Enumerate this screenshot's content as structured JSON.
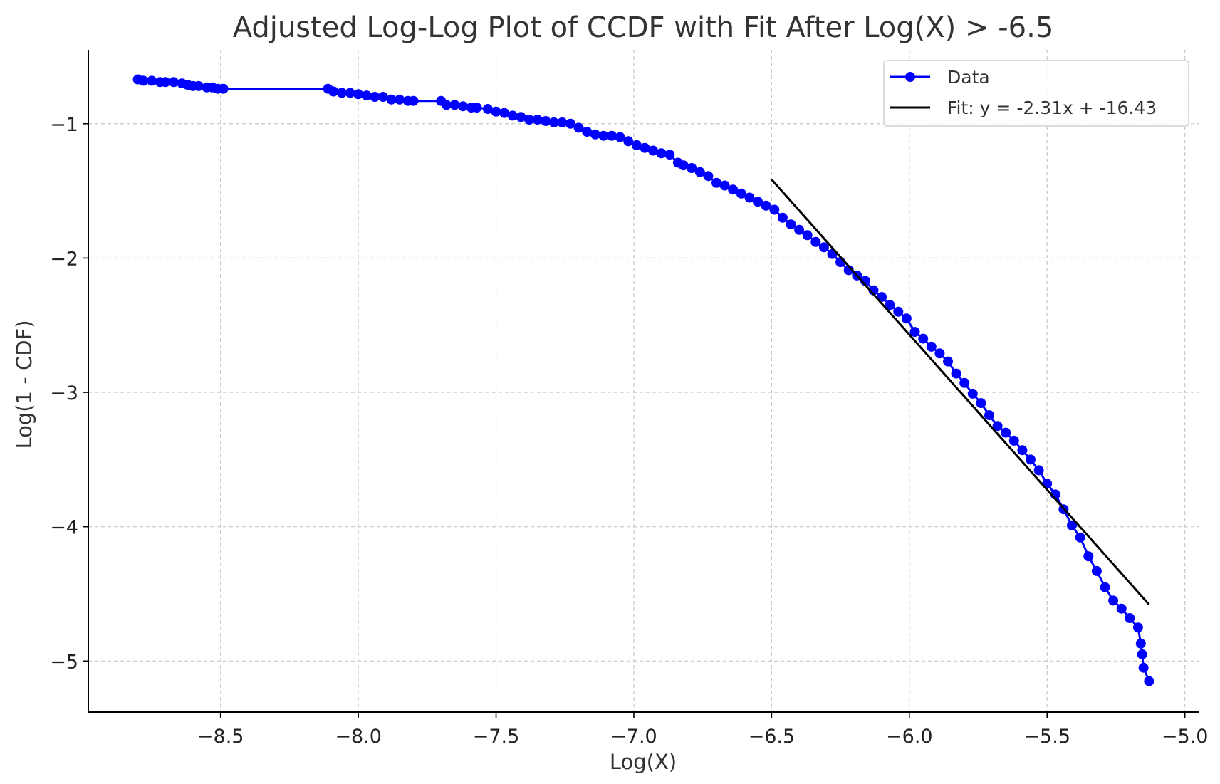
{
  "chart_data": {
    "type": "scatter",
    "title": "Adjusted Log-Log Plot of CCDF with Fit After Log(X) > -6.5",
    "xlabel": "Log(X)",
    "ylabel": "Log(1 - CDF)",
    "xlim": [
      -8.98,
      -4.95
    ],
    "ylim": [
      -5.38,
      -0.45
    ],
    "xticks": [
      -8.5,
      -8.0,
      -7.5,
      -7.0,
      -6.5,
      -6.0,
      -5.5,
      -5.0
    ],
    "xtick_labels": [
      "−8.5",
      "−8.0",
      "−7.5",
      "−7.0",
      "−6.5",
      "−6.0",
      "−5.5",
      "−5.0"
    ],
    "yticks": [
      -1,
      -2,
      -3,
      -4,
      -5
    ],
    "ytick_labels": [
      "−1",
      "−2",
      "−3",
      "−4",
      "−5"
    ],
    "grid": true,
    "legend_position": "top-right",
    "series": [
      {
        "name": "Data",
        "kind": "line-marker",
        "color": "#0000ff",
        "x": [
          -8.8,
          -8.78,
          -8.75,
          -8.72,
          -8.7,
          -8.67,
          -8.64,
          -8.62,
          -8.6,
          -8.58,
          -8.55,
          -8.53,
          -8.51,
          -8.49,
          -8.11,
          -8.09,
          -8.06,
          -8.03,
          -8.0,
          -7.97,
          -7.94,
          -7.91,
          -7.88,
          -7.85,
          -7.82,
          -7.8,
          -7.7,
          -7.68,
          -7.65,
          -7.62,
          -7.59,
          -7.57,
          -7.53,
          -7.5,
          -7.47,
          -7.44,
          -7.41,
          -7.38,
          -7.35,
          -7.32,
          -7.29,
          -7.26,
          -7.23,
          -7.2,
          -7.17,
          -7.14,
          -7.11,
          -7.08,
          -7.05,
          -7.02,
          -6.99,
          -6.96,
          -6.93,
          -6.9,
          -6.87,
          -6.84,
          -6.82,
          -6.79,
          -6.76,
          -6.73,
          -6.7,
          -6.67,
          -6.64,
          -6.61,
          -6.58,
          -6.55,
          -6.52,
          -6.49,
          -6.46,
          -6.43,
          -6.4,
          -6.37,
          -6.34,
          -6.31,
          -6.28,
          -6.25,
          -6.22,
          -6.19,
          -6.16,
          -6.13,
          -6.1,
          -6.07,
          -6.04,
          -6.01,
          -5.98,
          -5.95,
          -5.92,
          -5.89,
          -5.86,
          -5.83,
          -5.8,
          -5.77,
          -5.74,
          -5.71,
          -5.68,
          -5.65,
          -5.62,
          -5.59,
          -5.56,
          -5.53,
          -5.5,
          -5.47,
          -5.44,
          -5.41,
          -5.38,
          -5.35,
          -5.32,
          -5.29,
          -5.26,
          -5.23,
          -5.2,
          -5.17,
          -5.16,
          -5.155,
          -5.15,
          -5.13
        ],
        "y": [
          -0.67,
          -0.68,
          -0.68,
          -0.69,
          -0.69,
          -0.69,
          -0.7,
          -0.71,
          -0.72,
          -0.72,
          -0.73,
          -0.73,
          -0.74,
          -0.74,
          -0.74,
          -0.76,
          -0.77,
          -0.77,
          -0.78,
          -0.79,
          -0.8,
          -0.8,
          -0.82,
          -0.82,
          -0.83,
          -0.83,
          -0.83,
          -0.86,
          -0.86,
          -0.87,
          -0.88,
          -0.88,
          -0.89,
          -0.91,
          -0.92,
          -0.94,
          -0.95,
          -0.97,
          -0.97,
          -0.98,
          -0.99,
          -0.99,
          -1.0,
          -1.03,
          -1.06,
          -1.08,
          -1.09,
          -1.09,
          -1.1,
          -1.13,
          -1.16,
          -1.18,
          -1.2,
          -1.22,
          -1.23,
          -1.29,
          -1.31,
          -1.33,
          -1.36,
          -1.39,
          -1.44,
          -1.46,
          -1.49,
          -1.52,
          -1.55,
          -1.58,
          -1.61,
          -1.64,
          -1.7,
          -1.75,
          -1.79,
          -1.83,
          -1.88,
          -1.92,
          -1.97,
          -2.03,
          -2.09,
          -2.13,
          -2.17,
          -2.24,
          -2.29,
          -2.35,
          -2.4,
          -2.45,
          -2.55,
          -2.6,
          -2.66,
          -2.71,
          -2.77,
          -2.86,
          -2.93,
          -3.01,
          -3.08,
          -3.17,
          -3.25,
          -3.3,
          -3.36,
          -3.43,
          -3.5,
          -3.58,
          -3.68,
          -3.76,
          -3.87,
          -3.99,
          -4.08,
          -4.22,
          -4.33,
          -4.45,
          -4.55,
          -4.61,
          -4.68,
          -4.75,
          -4.87,
          -4.95,
          -5.05,
          -5.15
        ]
      },
      {
        "name": "Fit: y = -2.31x + -16.43",
        "kind": "line",
        "color": "#000000",
        "slope": -2.31,
        "intercept": -16.43,
        "x": [
          -6.5,
          -5.13
        ]
      }
    ]
  }
}
